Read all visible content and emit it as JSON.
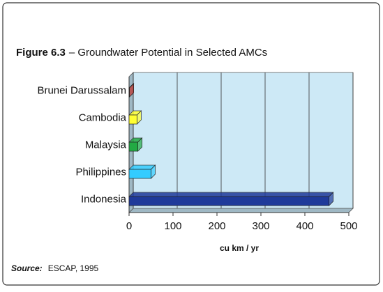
{
  "chart_data": {
    "type": "bar",
    "orientation": "horizontal",
    "title_label": "Figure 6.3",
    "title": "– Groundwater Potential in Selected AMCs",
    "categories": [
      "Brunei Darussalam",
      "Cambodia",
      "Malaysia",
      "Philippines",
      "Indonesia"
    ],
    "values": [
      1,
      18,
      20,
      50,
      455
    ],
    "colors": [
      "#c0302a",
      "#ffff33",
      "#22aa44",
      "#33ccff",
      "#1f3a9a"
    ],
    "x_label": "cu km / yr",
    "xlim": [
      0,
      500
    ],
    "xticks": [
      0,
      100,
      200,
      300,
      400,
      500
    ],
    "grid": true,
    "source_label": "Source:",
    "source": "ESCAP, 1995"
  }
}
